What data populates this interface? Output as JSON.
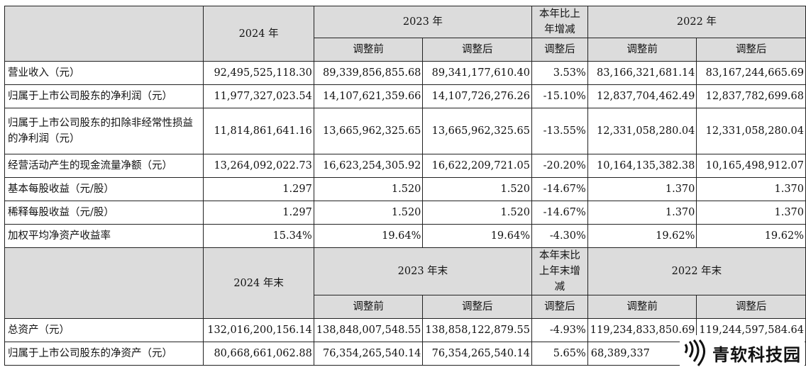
{
  "header1": {
    "year_2024": "2024 年",
    "year_2023": "2023 年",
    "change": "本年比上年增减",
    "year_2022": "2022 年"
  },
  "subheader": {
    "before": "调整前",
    "after": "调整后"
  },
  "rows1": [
    {
      "label": "营业收入（元）",
      "v2024": "92,495,525,118.30",
      "v2023b": "89,339,856,855.68",
      "v2023a": "89,341,177,610.40",
      "chg": "3.53%",
      "v2022b": "83,166,321,681.14",
      "v2022a": "83,167,244,665.69"
    },
    {
      "label": "归属于上市公司股东的净利润（元）",
      "v2024": "11,977,327,023.54",
      "v2023b": "14,107,621,359.66",
      "v2023a": "14,107,726,276.26",
      "chg": "-15.10%",
      "v2022b": "12,837,704,462.49",
      "v2022a": "12,837,782,699.68"
    },
    {
      "label": "归属于上市公司股东的扣除非经常性损益的净利润（元）",
      "v2024": "11,814,861,641.16",
      "v2023b": "13,665,962,325.65",
      "v2023a": "13,665,962,325.65",
      "chg": "-13.55%",
      "v2022b": "12,331,058,280.04",
      "v2022a": "12,331,058,280.04"
    },
    {
      "label": "经营活动产生的现金流量净额（元）",
      "v2024": "13,264,092,022.73",
      "v2023b": "16,623,254,305.92",
      "v2023a": "16,622,209,721.05",
      "chg": "-20.20%",
      "v2022b": "10,164,135,382.38",
      "v2022a": "10,165,498,912.07"
    },
    {
      "label": "基本每股收益（元/股）",
      "v2024": "1.297",
      "v2023b": "1.520",
      "v2023a": "1.520",
      "chg": "-14.67%",
      "v2022b": "1.370",
      "v2022a": "1.370"
    },
    {
      "label": "稀释每股收益（元/股）",
      "v2024": "1.297",
      "v2023b": "1.520",
      "v2023a": "1.520",
      "chg": "-14.67%",
      "v2022b": "1.370",
      "v2022a": "1.370"
    },
    {
      "label": "加权平均净资产收益率",
      "v2024": "15.34%",
      "v2023b": "19.64%",
      "v2023a": "19.64%",
      "chg": "-4.30%",
      "v2022b": "19.62%",
      "v2022a": "19.62%"
    }
  ],
  "header2": {
    "year_2024": "2024 年末",
    "year_2023": "2023 年末",
    "change": "本年末比上年末增减",
    "year_2022": "2022 年末"
  },
  "rows2": [
    {
      "label": "总资产（元）",
      "v2024": "132,016,200,156.14",
      "v2023b": "138,848,007,548.55",
      "v2023a": "138,858,122,879.55",
      "chg": "-4.93%",
      "v2022b": "119,234,833,850.69",
      "v2022a": "119,244,597,584.64"
    },
    {
      "label": "归属于上市公司股东的净资产（元）",
      "v2024": "80,668,661,062.88",
      "v2023b": "76,354,265,540.14",
      "v2023a": "76,354,265,540.14",
      "chg": "5.65%",
      "v2022b": "68,389,337",
      "v2022a": ""
    }
  ],
  "watermark": {
    "text": "青软科技园",
    "icon": "sound-wave-logo-icon"
  }
}
